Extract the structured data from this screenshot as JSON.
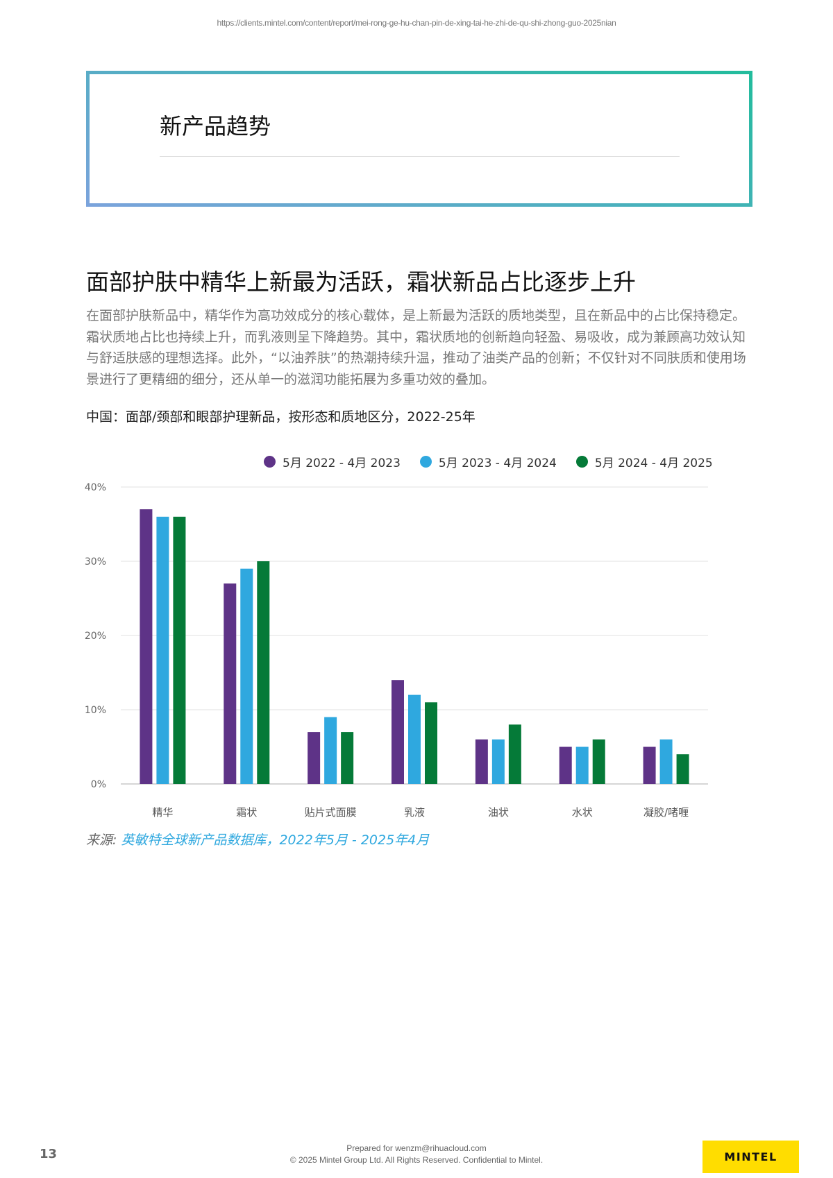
{
  "header": {
    "url": "https://clients.mintel.com/content/report/mei-rong-ge-hu-chan-pin-de-xing-tai-he-zhi-de-qu-shi-zhong-guo-2025nian"
  },
  "section_title": "新产品趋势",
  "heading": "面部护肤中精华上新最为活跃，霜状新品占比逐步上升",
  "paragraph": "在面部护肤新品中，精华作为高功效成分的核心载体，是上新最为活跃的质地类型，且在新品中的占比保持稳定。霜状质地占比也持续上升，而乳液则呈下降趋势。其中，霜状质地的创新趋向轻盈、易吸收，成为兼顾高功效认知与舒适肤感的理想选择。此外，“以油养肤”的热潮持续升温，推动了油类产品的创新；不仅针对不同肤质和使用场景进行了更精细的细分，还从单一的滋润功能拓展为多重功效的叠加。",
  "chart_data": {
    "type": "bar",
    "title": "中国：面部/颈部和眼部护理新品，按形态和质地区分，2022-25年",
    "categories": [
      "精华",
      "霜状",
      "贴片式面膜",
      "乳液",
      "油状",
      "水状",
      "凝胶/啫喱"
    ],
    "series": [
      {
        "name": "5月 2022 - 4月 2023",
        "color": "#5e3387",
        "values": [
          37,
          27,
          7,
          14,
          6,
          5,
          5
        ]
      },
      {
        "name": "5月 2023 - 4月 2024",
        "color": "#2fa8df",
        "values": [
          36,
          29,
          9,
          12,
          6,
          5,
          6
        ]
      },
      {
        "name": "5月 2024 - 4月 2025",
        "color": "#057a38",
        "values": [
          36,
          30,
          7,
          11,
          8,
          6,
          4
        ]
      }
    ],
    "ylim": [
      0,
      40
    ],
    "yticks": [
      "0%",
      "10%",
      "20%",
      "30%",
      "40%"
    ],
    "grid": true,
    "legend": "top-right"
  },
  "source": {
    "label": "来源:",
    "value": "英敏特全球新产品数据库，2022年5月 - 2025年4月"
  },
  "footer": {
    "page_number": "13",
    "prepared": "Prepared for wenzm@rihuacloud.com",
    "copyright": "© 2025 Mintel Group Ltd. All Rights Reserved. Confidential to Mintel.",
    "logo": "MINTEL"
  }
}
